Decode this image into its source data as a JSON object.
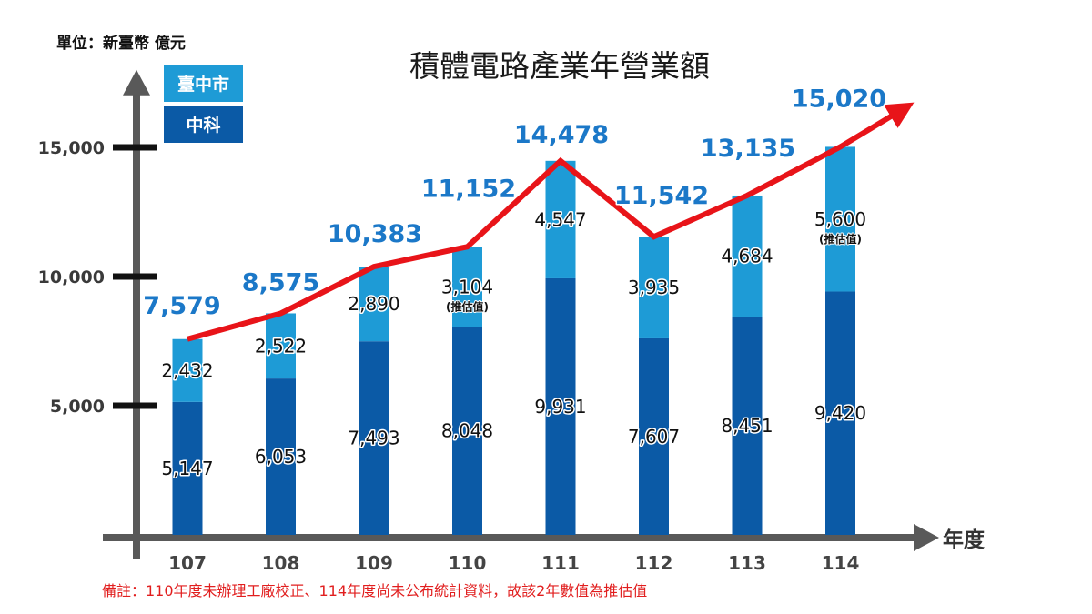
{
  "chart_data": {
    "type": "bar",
    "stacked": true,
    "overlay": "line",
    "title": "積體電路產業年營業額",
    "xlabel": "年度",
    "ylabel": "單位：新臺幣 億元",
    "categories": [
      "107",
      "108",
      "109",
      "110",
      "111",
      "112",
      "113",
      "114"
    ],
    "series": [
      {
        "name": "中科",
        "color": "#0b5aa6",
        "values": [
          5147,
          6053,
          7493,
          8048,
          9931,
          7607,
          8451,
          9420
        ],
        "data_labels": [
          "5,147",
          "6,053",
          "7,493",
          "8,048",
          "9,931",
          "7,607",
          "8,451",
          "9,420"
        ]
      },
      {
        "name": "臺中市",
        "color": "#1e9bd6",
        "values": [
          2432,
          2522,
          2890,
          3104,
          4547,
          3935,
          4684,
          5600
        ],
        "data_labels": [
          "2,432",
          "2,522",
          "2,890",
          "3,104",
          "4,547",
          "3,935",
          "4,684",
          "5,600"
        ],
        "annotations": [
          null,
          null,
          null,
          "(推估值)",
          null,
          null,
          null,
          "(推估值)"
        ]
      }
    ],
    "totals": [
      7579,
      8575,
      10383,
      11152,
      14478,
      11542,
      13135,
      15020
    ],
    "total_labels": [
      "7,579",
      "8,575",
      "10,383",
      "11,152",
      "14,478",
      "11,542",
      "13,135",
      "15,020"
    ],
    "yticks": [
      5000,
      10000,
      15000
    ],
    "ytick_labels": [
      "5,000",
      "10,000",
      "15,000"
    ],
    "ylim": [
      0,
      18000
    ],
    "grid": false,
    "legend": "top-left",
    "line_color": "#e81419",
    "total_label_color": "#1b78c8",
    "axis_color": "#595959"
  },
  "footnote": {
    "text": "備註：110年度未辦理工廠校正、114年度尚未公布統計資料，故該2年數值為推估值",
    "color": "#e11e1e"
  }
}
